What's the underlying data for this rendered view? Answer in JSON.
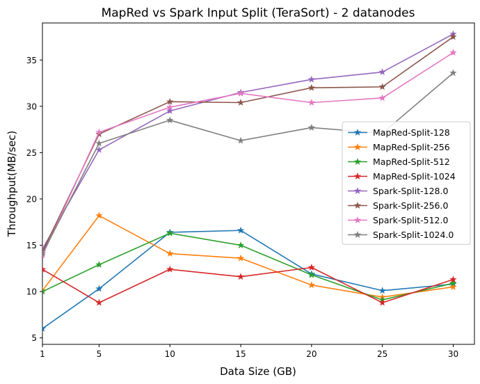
{
  "chart_data": {
    "type": "line",
    "title": "MapRed vs Spark Input Split (TeraSort) - 2 datanodes",
    "xlabel": "Data Size (GB)",
    "ylabel": "Throughput(MB/sec)",
    "x": [
      1,
      5,
      10,
      15,
      20,
      25,
      30
    ],
    "xticks": [
      1,
      5,
      10,
      15,
      20,
      25,
      30
    ],
    "yticks": [
      5,
      10,
      15,
      20,
      25,
      30,
      35
    ],
    "xlim": [
      1,
      31.5
    ],
    "ylim": [
      4.3,
      39.0
    ],
    "grid": false,
    "legend_position": "center-right",
    "marker": "star",
    "series": [
      {
        "name": "MapRed-Split-128",
        "color": "#1f77b4",
        "values": [
          6.0,
          10.3,
          16.4,
          16.6,
          11.9,
          10.1,
          10.8
        ]
      },
      {
        "name": "MapRed-Split-256",
        "color": "#ff7f0e",
        "values": [
          10.1,
          18.2,
          14.1,
          13.6,
          10.7,
          9.4,
          10.5
        ]
      },
      {
        "name": "MapRed-Split-512",
        "color": "#2ca02c",
        "values": [
          10.0,
          12.9,
          16.3,
          15.0,
          11.8,
          9.1,
          10.9
        ]
      },
      {
        "name": "MapRed-Split-1024",
        "color": "#d62728",
        "values": [
          12.4,
          8.8,
          12.4,
          11.6,
          12.6,
          8.8,
          11.3
        ]
      },
      {
        "name": "Spark-Split-128.0",
        "color": "#9467bd",
        "values": [
          14.6,
          25.3,
          29.5,
          31.5,
          32.9,
          33.7,
          37.8
        ]
      },
      {
        "name": "Spark-Split-256.0",
        "color": "#8c564b",
        "values": [
          14.3,
          27.0,
          30.5,
          30.4,
          32.0,
          32.1,
          37.5
        ]
      },
      {
        "name": "Spark-Split-512.0",
        "color": "#e377c2",
        "values": [
          13.9,
          27.2,
          29.9,
          31.4,
          30.4,
          30.9,
          35.8
        ]
      },
      {
        "name": "Spark-Split-1024.0",
        "color": "#7f7f7f",
        "values": [
          14.1,
          26.0,
          28.5,
          26.3,
          27.7,
          27.1,
          33.6
        ]
      }
    ]
  }
}
